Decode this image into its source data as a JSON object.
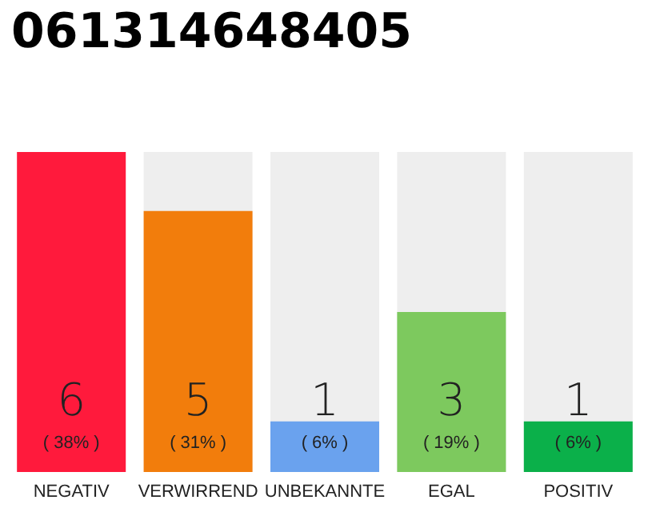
{
  "chart_data": {
    "type": "bar",
    "title": "061314648405",
    "categories": [
      "NEGATIV",
      "VERWIRREND",
      "UNBEKANNTE",
      "EGAL",
      "POSITIV"
    ],
    "values": [
      38,
      31,
      6,
      19,
      6
    ],
    "colors": [
      "#ff1a3c",
      "#f27d0c",
      "#6aa2ee",
      "#7dc95e",
      "#0bb04a"
    ],
    "value_labels": [
      "( 38% )",
      "( 31% )",
      "( 6% )",
      "( 19% )",
      "( 6% )"
    ],
    "annotations": [
      "6",
      "5",
      "1",
      "3",
      "1"
    ]
  }
}
